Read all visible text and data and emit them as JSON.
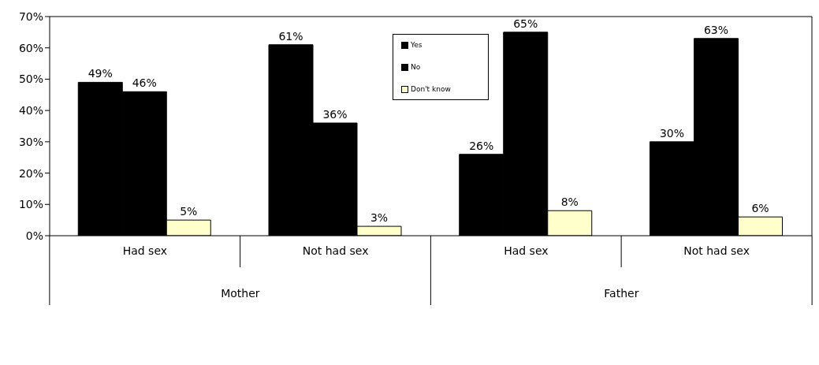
{
  "chart_data": {
    "type": "bar",
    "categories": [
      "Had sex",
      "Not had sex",
      "Had sex",
      "Not had sex"
    ],
    "series": [
      {
        "name": "Yes",
        "color": "#000000",
        "values": [
          49,
          61,
          26,
          30
        ],
        "value_labels": [
          "49%",
          "61%",
          "26%",
          "30%"
        ]
      },
      {
        "name": "No",
        "color": "#000000",
        "values": [
          46,
          36,
          65,
          63
        ],
        "value_labels": [
          "46%",
          "36%",
          "65%",
          "63%"
        ]
      },
      {
        "name": "Don't know",
        "color": "#ffffcc",
        "values": [
          5,
          3,
          8,
          6
        ],
        "value_labels": [
          "5%",
          "3%",
          "8%",
          "6%"
        ]
      }
    ],
    "annotations": [
      "Mother",
      "Father"
    ],
    "ylim": [
      0,
      70
    ],
    "yticks": [
      {
        "value": 0,
        "label": "0%"
      },
      {
        "value": 10,
        "label": "10%"
      },
      {
        "value": 20,
        "label": "20%"
      },
      {
        "value": 30,
        "label": "30%"
      },
      {
        "value": 40,
        "label": "40%"
      },
      {
        "value": 50,
        "label": "50%"
      },
      {
        "value": 60,
        "label": "60%"
      },
      {
        "value": 70,
        "label": "70%"
      }
    ],
    "legend": "top",
    "grid": false
  }
}
